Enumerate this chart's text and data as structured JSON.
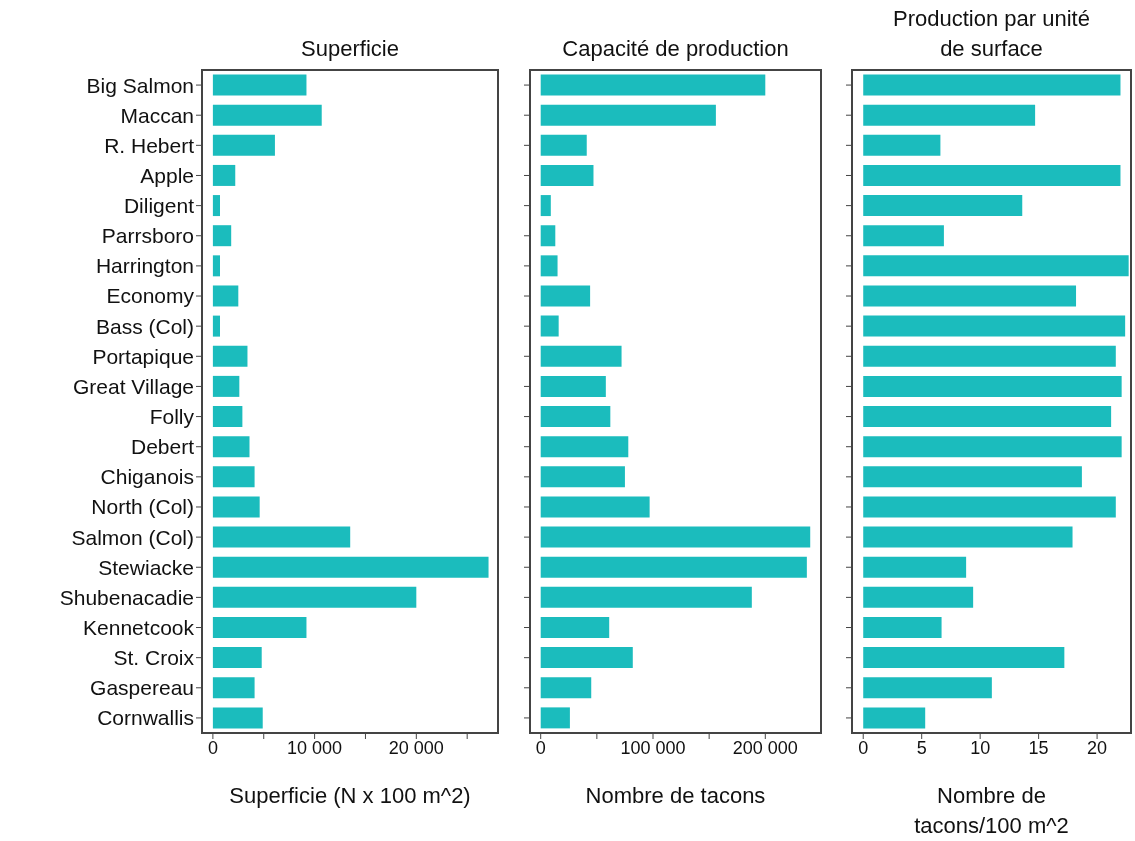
{
  "chart_data": [
    {
      "type": "bar",
      "orientation": "horizontal",
      "title": "Superficie",
      "xlabel": "Superficie (N x 100 m^2)",
      "color": "#1bbcbd",
      "categories": [
        "Big Salmon",
        "Maccan",
        "R. Hebert",
        "Apple",
        "Diligent",
        "Parrsboro",
        "Harrington",
        "Economy",
        "Bass (Col)",
        "Portapique",
        "Great Village",
        "Folly",
        "Debert",
        "Chiganois",
        "North (Col)",
        "Salmon (Col)",
        "Stewiacke",
        "Shubenacadie",
        "Kennetcook",
        "St. Croix",
        "Gaspereau",
        "Cornwallis"
      ],
      "values": [
        9200,
        10700,
        6100,
        2200,
        700,
        1800,
        700,
        2500,
        700,
        3400,
        2600,
        2900,
        3600,
        4100,
        4600,
        13500,
        27100,
        20000,
        9200,
        4800,
        4100,
        4900
      ],
      "xlim": [
        -1070,
        28030
      ],
      "xticks": [
        0,
        {
          "value": 5000,
          "label": null
        },
        {
          "value": 10000,
          "label": "10 000"
        },
        {
          "value": 15000,
          "label": null
        },
        {
          "value": 20000,
          "label": "20 000"
        },
        {
          "value": 25000,
          "label": null
        }
      ]
    },
    {
      "type": "bar",
      "orientation": "horizontal",
      "title": "Capacité de production",
      "xlabel": "Nombre de tacons",
      "color": "#1bbcbd",
      "categories": [
        null,
        null,
        null,
        null,
        null,
        null,
        null,
        null,
        null,
        null,
        null,
        null,
        null,
        null,
        null,
        null,
        null,
        null,
        null,
        null,
        null,
        null
      ],
      "values": [
        200000,
        156000,
        41000,
        47000,
        9000,
        13000,
        15000,
        44000,
        16000,
        72000,
        58000,
        62000,
        78000,
        75000,
        97000,
        240000,
        237000,
        188000,
        61000,
        82000,
        45000,
        26000
      ],
      "xlim": [
        -9530,
        249600
      ],
      "xticks": [
        0,
        {
          "value": 50000,
          "label": null
        },
        {
          "value": 100000,
          "label": "100 000"
        },
        {
          "value": 150000,
          "label": null
        },
        {
          "value": 200000,
          "label": "200 000"
        }
      ]
    },
    {
      "type": "bar",
      "orientation": "horizontal",
      "title": "Production par unité de surface",
      "xlabel": "Nombre de tacons/100 m^2",
      "color": "#1bbcbd",
      "categories": [
        null,
        null,
        null,
        null,
        null,
        null,
        null,
        null,
        null,
        null,
        null,
        null,
        null,
        null,
        null,
        null,
        null,
        null,
        null,
        null,
        null,
        null
      ],
      "values": [
        22.0,
        14.7,
        6.6,
        22.0,
        13.6,
        6.9,
        22.7,
        18.2,
        22.4,
        21.6,
        22.1,
        21.2,
        22.1,
        18.7,
        21.6,
        17.9,
        8.8,
        9.4,
        6.7,
        17.2,
        11.0,
        5.3
      ],
      "xlim": [
        -0.96,
        22.9
      ],
      "xticks": [
        0,
        5,
        10,
        15,
        20
      ]
    }
  ]
}
